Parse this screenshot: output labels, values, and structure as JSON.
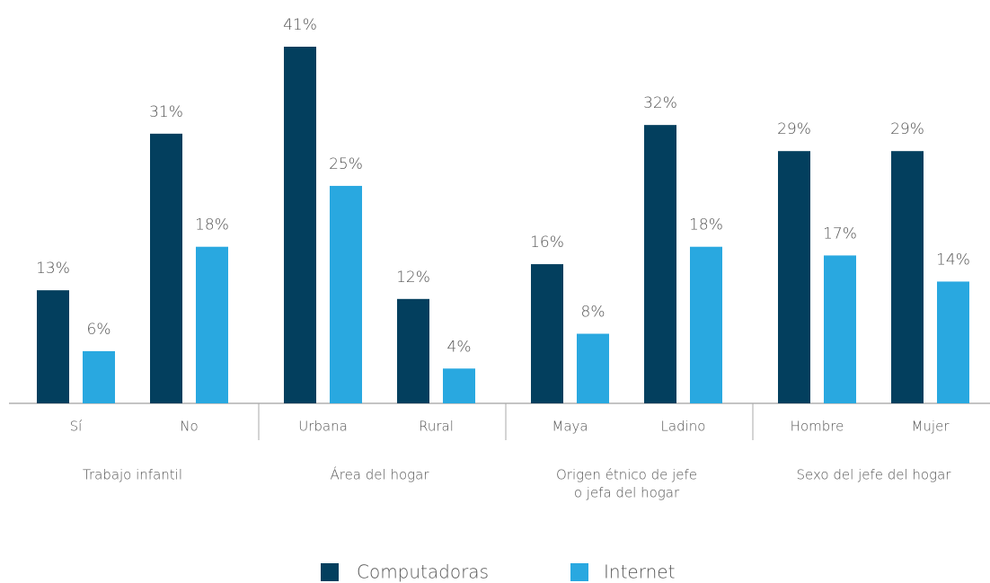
{
  "chart_data": {
    "type": "bar",
    "categories": [
      "Sí",
      "No",
      "Urbana",
      "Rural",
      "Maya",
      "Ladino",
      "Hombre",
      "Mujer"
    ],
    "groups": [
      [
        "Trabajo infantil"
      ],
      [
        "Área del hogar"
      ],
      [
        "Origen étnico de jefe",
        "o jefa del hogar"
      ],
      [
        "Sexo del jefe del hogar"
      ]
    ],
    "series": [
      {
        "name": "Computadoras",
        "color": "#033f5e",
        "values": [
          13,
          31,
          41,
          12,
          16,
          32,
          29,
          29
        ],
        "value_labels": [
          "13%",
          "31%",
          "41%",
          "12%",
          "16%",
          "32%",
          "29%",
          "29%"
        ]
      },
      {
        "name": "Internet",
        "color": "#29a8e0",
        "values": [
          6,
          18,
          25,
          4,
          8,
          18,
          17,
          14
        ],
        "value_labels": [
          "6%",
          "18%",
          "25%",
          "4%",
          "8%",
          "18%",
          "17%",
          "14%"
        ]
      }
    ],
    "ylim": [
      0,
      41
    ]
  }
}
